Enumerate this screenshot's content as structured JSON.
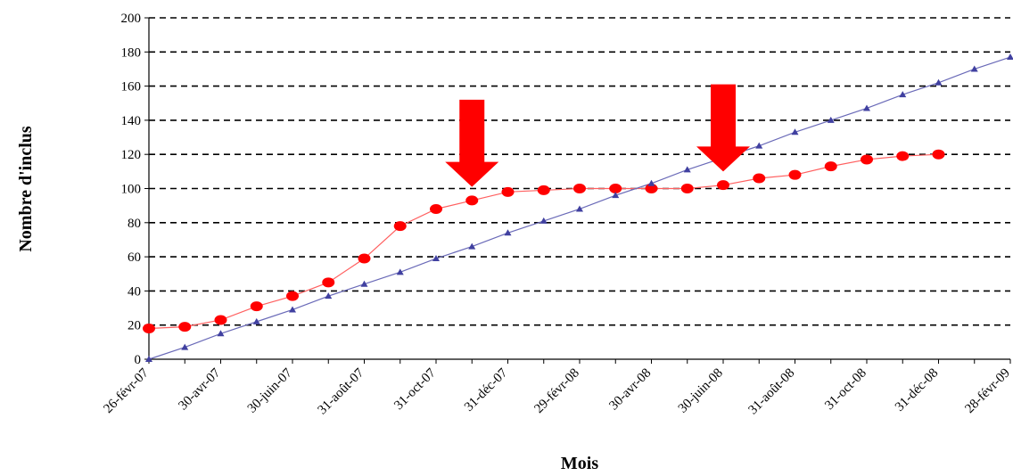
{
  "chart_data": {
    "type": "line",
    "title": "",
    "xlabel": "Mois",
    "ylabel": "Nombre d'inclus",
    "ylim": [
      0,
      200
    ],
    "yticks": [
      0,
      20,
      40,
      60,
      80,
      100,
      120,
      140,
      160,
      180,
      200
    ],
    "grid": "horizontal-dashed",
    "legend": "none",
    "x_tick_labels": [
      "26-févr-07",
      "30-avr-07",
      "30-juin-07",
      "31-août-07",
      "31-oct-07",
      "31-déc-07",
      "29-févr-08",
      "30-avr-08",
      "30-juin-08",
      "31-août-08",
      "31-oct-08",
      "31-déc-08",
      "28-févr-09"
    ],
    "x_months": [
      "2007-02",
      "2007-03",
      "2007-04",
      "2007-05",
      "2007-06",
      "2007-07",
      "2007-08",
      "2007-09",
      "2007-10",
      "2007-11",
      "2007-12",
      "2008-01",
      "2008-02",
      "2008-03",
      "2008-04",
      "2008-05",
      "2008-06",
      "2008-07",
      "2008-08",
      "2008-09",
      "2008-10",
      "2008-11",
      "2008-12",
      "2009-01",
      "2009-02"
    ],
    "series": [
      {
        "marker": "circle",
        "color": "#ff0000",
        "values": [
          18,
          19,
          23,
          31,
          37,
          45,
          59,
          78,
          88,
          93,
          98,
          99,
          100,
          100,
          100,
          100,
          102,
          106,
          108,
          113,
          117,
          119,
          120,
          null,
          null
        ]
      },
      {
        "marker": "triangle",
        "color": "#4040a0",
        "values": [
          0,
          7,
          15,
          22,
          29,
          37,
          44,
          51,
          59,
          66,
          74,
          81,
          88,
          96,
          103,
          111,
          118,
          125,
          133,
          140,
          147,
          155,
          162,
          170,
          177
        ]
      }
    ],
    "annotations": [
      {
        "shape": "down-arrow",
        "color": "#ff0000",
        "at_x": "2007-11",
        "y_top": 152,
        "y_tip": 101
      },
      {
        "shape": "down-arrow",
        "color": "#ff0000",
        "at_x": "2008-06",
        "y_top": 161,
        "y_tip": 110
      }
    ]
  }
}
